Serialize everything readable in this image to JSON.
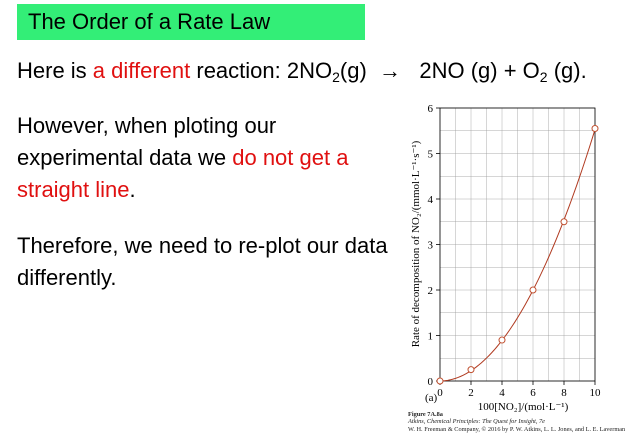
{
  "slide": {
    "title": "The Order of a Rate Law",
    "reaction_line": {
      "pre": "Here is ",
      "highlight": "a different",
      "mid": " reaction: 2NO",
      "sub_1": "2",
      "post_1": "(g)",
      "arrow": "→",
      "product_1": "2NO (g) + O",
      "sub_2": "2",
      "post_2": " (g)."
    },
    "paragraph_1": {
      "pre": "However, when ploting our experimental data we ",
      "highlight": "do not get a straight line",
      "post": "."
    },
    "paragraph_2": "Therefore, we need to re-plot our data differently."
  },
  "figure": {
    "panel_label": "(a)",
    "caption_number": "Figure 7A.8a",
    "caption_book": "Atkins, Chemical Principles: The Quest for Insight, 7e",
    "caption_credit": "W. H. Freeman & Company, © 2016 by P. W. Atkins, L. L. Jones, and L. E. Laverman"
  },
  "colors": {
    "title_bg": "#33ee77",
    "highlight_text": "#e01010",
    "curve": "#b03a20",
    "marker_edge": "#c05030"
  },
  "chart_data": {
    "type": "scatter",
    "xlabel": "100[NO₂]/(mol·L⁻¹)",
    "ylabel": "Rate of decomposition of NO₂/(mmol·L⁻¹·s⁻¹)",
    "xlim": [
      0,
      10
    ],
    "ylim": [
      0,
      6
    ],
    "x_ticks": [
      "0",
      "2",
      "4",
      "6",
      "8",
      "10"
    ],
    "y_ticks": [
      "0",
      "1",
      "2",
      "3",
      "4",
      "5",
      "6"
    ],
    "grid": true,
    "x": [
      0,
      2,
      4,
      6,
      8,
      10
    ],
    "y": [
      0,
      0.25,
      0.9,
      2.0,
      3.5,
      5.55
    ],
    "fit_curve": "smooth quadratic through points"
  }
}
